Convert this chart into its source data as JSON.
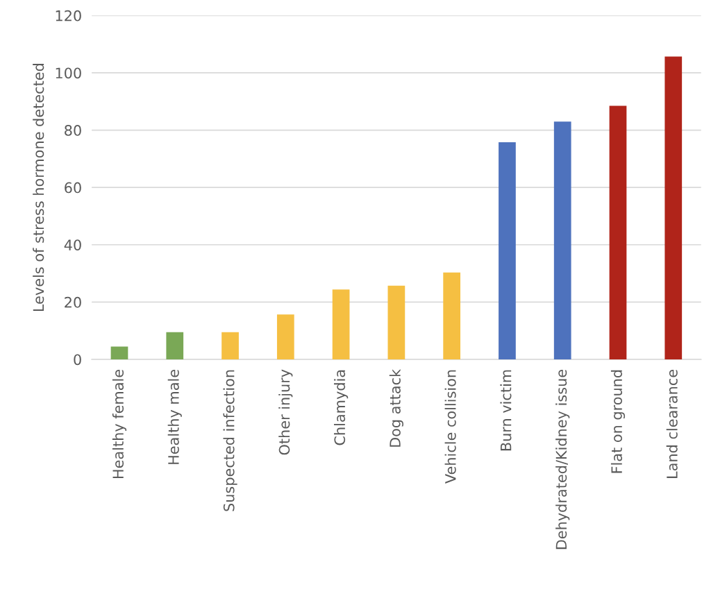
{
  "chart_data": {
    "type": "bar",
    "ylabel": "Levels of stress hormone detected",
    "categories": [
      "Healthy female",
      "Healthy male",
      "Suspected infection",
      "Other injury",
      "Chlamydia",
      "Dog attack",
      "Vehicle collision",
      "Burn victim",
      "Dehydrated/Kidney issue",
      "Flat on ground",
      "Land clearance"
    ],
    "values": [
      4.5,
      9.5,
      9.5,
      15.7,
      24.4,
      25.7,
      30.3,
      75.8,
      83.0,
      88.5,
      105.7
    ],
    "colors": [
      "#7aa856",
      "#7aa856",
      "#f5bf42",
      "#f5bf42",
      "#f5bf42",
      "#f5bf42",
      "#f5bf42",
      "#4e72bd",
      "#4e72bd",
      "#b0241a",
      "#b0241a"
    ],
    "ylim": [
      0,
      120
    ],
    "yticks": [
      0,
      20,
      40,
      60,
      80,
      100,
      120
    ],
    "grid": "y",
    "legend": false
  }
}
